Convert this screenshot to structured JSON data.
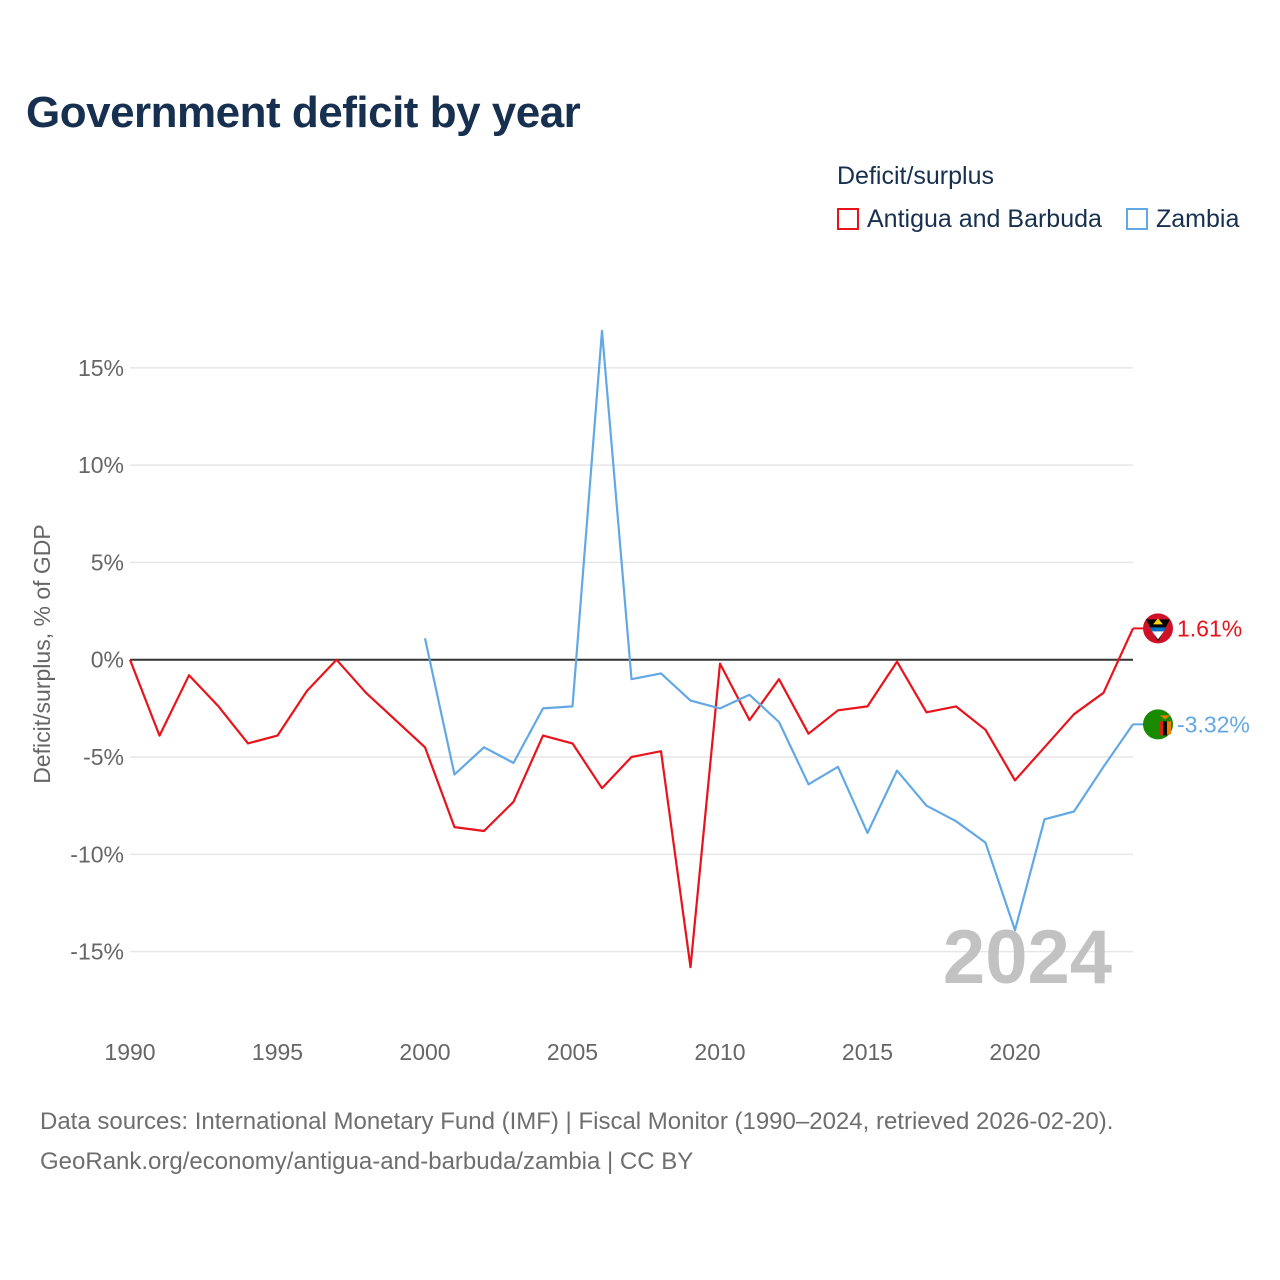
{
  "title": "Government deficit by year",
  "legend": {
    "title": "Deficit/surplus",
    "items": [
      {
        "label": "Antigua and Barbuda",
        "color": "#e8131b"
      },
      {
        "label": "Zambia",
        "color": "#62a8e5"
      }
    ]
  },
  "chart_data": {
    "type": "line",
    "title": "Government deficit by year",
    "xlabel": "",
    "ylabel": "Deficit/surplus, % of GDP",
    "xlim": [
      1990,
      2024
    ],
    "ylim": [
      -18,
      19
    ],
    "x_ticks": [
      1990,
      1995,
      2000,
      2005,
      2010,
      2015,
      2020
    ],
    "y_ticks": [
      {
        "value": 15,
        "label": "15%"
      },
      {
        "value": 10,
        "label": "10%"
      },
      {
        "value": 5,
        "label": "5%"
      },
      {
        "value": 0,
        "label": "0%"
      },
      {
        "value": -5,
        "label": "-5%"
      },
      {
        "value": -10,
        "label": "-10%"
      },
      {
        "value": -15,
        "label": "-15%"
      }
    ],
    "year_label": "2024",
    "series": [
      {
        "name": "Antigua and Barbuda",
        "color": "#e8131b",
        "end_label": "1.61%",
        "x": [
          1990,
          1991,
          1992,
          1993,
          1994,
          1995,
          1996,
          1997,
          1998,
          1999,
          2000,
          2001,
          2002,
          2003,
          2004,
          2005,
          2006,
          2007,
          2008,
          2009,
          2010,
          2011,
          2012,
          2013,
          2014,
          2015,
          2016,
          2017,
          2018,
          2019,
          2020,
          2021,
          2022,
          2023,
          2024
        ],
        "values": [
          0,
          -3.9,
          -0.8,
          -2.4,
          -4.3,
          -3.9,
          -1.6,
          0,
          -1.7,
          -3.1,
          -4.5,
          -8.6,
          -8.8,
          -7.3,
          -3.9,
          -4.3,
          -6.6,
          -5,
          -4.7,
          -15.8,
          -0.2,
          -3.1,
          -1,
          -3.8,
          -2.6,
          -2.4,
          -0.1,
          -2.7,
          -2.4,
          -3.6,
          -6.2,
          -4.5,
          -2.8,
          -1.7,
          1.61
        ]
      },
      {
        "name": "Zambia",
        "color": "#62a8e5",
        "end_label": "-3.32%",
        "x": [
          2000,
          2001,
          2002,
          2003,
          2004,
          2005,
          2006,
          2007,
          2008,
          2009,
          2010,
          2011,
          2012,
          2013,
          2014,
          2015,
          2016,
          2017,
          2018,
          2019,
          2020,
          2021,
          2022,
          2023,
          2024
        ],
        "values": [
          1.1,
          -5.9,
          -4.5,
          -5.3,
          -2.5,
          -2.4,
          16.9,
          -1,
          -0.7,
          -2.1,
          -2.5,
          -1.8,
          -3.2,
          -6.4,
          -5.5,
          -8.9,
          -5.7,
          -7.5,
          -8.3,
          -9.4,
          -13.9,
          -8.2,
          -7.8,
          -5.5,
          -3.32
        ]
      }
    ]
  },
  "source": {
    "line1": "Data sources: International Monetary Fund (IMF) | Fiscal Monitor (1990–2024, retrieved 2026-02-20).",
    "line2": "GeoRank.org/economy/antigua-and-barbuda/zambia | CC BY"
  }
}
